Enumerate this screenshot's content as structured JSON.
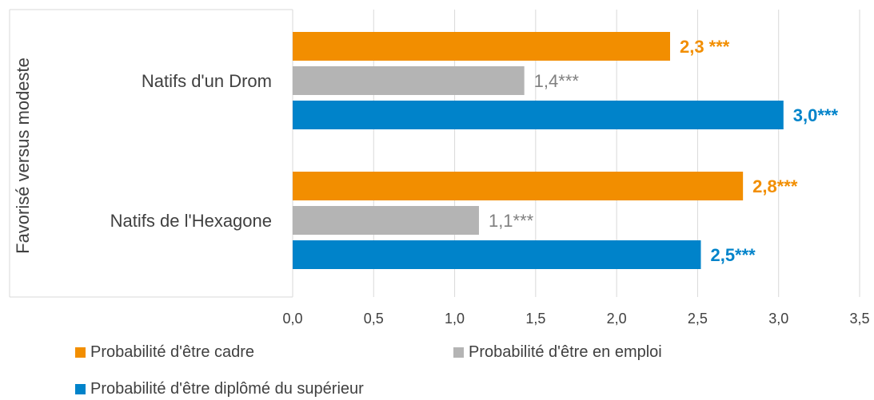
{
  "chart_data": {
    "type": "bar",
    "orientation": "horizontal",
    "group_axis_label": "Favorisé versus modeste",
    "categories": [
      "Natifs d'un Drom",
      "Natifs de l'Hexagone"
    ],
    "series": [
      {
        "name": "Probabilité d'être cadre",
        "color": "#f28e00",
        "values": [
          2.33,
          2.78
        ],
        "labels": [
          "2,3 ***",
          "2,8***"
        ],
        "label_bold": true
      },
      {
        "name": "Probabilité d'être en emploi",
        "color": "#b4b4b4",
        "values": [
          1.43,
          1.15
        ],
        "labels": [
          "1,4***",
          "1,1***"
        ],
        "label_bold": false
      },
      {
        "name": "Probabilité d'être diplômé du supérieur",
        "color": "#0083ca",
        "values": [
          3.03,
          2.52
        ],
        "labels": [
          "3,0***",
          "2,5***"
        ],
        "label_bold": true
      }
    ],
    "xlim": [
      0,
      3.5
    ],
    "xticks": [
      "0,0",
      "0,5",
      "1,0",
      "1,5",
      "2,0",
      "2,5",
      "3,0",
      "3,5"
    ],
    "xtick_values": [
      0,
      0.5,
      1.0,
      1.5,
      2.0,
      2.5,
      3.0,
      3.5
    ],
    "grid": true,
    "legend_position": "bottom"
  },
  "colors": {
    "grid": "#d9d9d9",
    "axis_text": "#404040",
    "gray_label": "#7f7f7f"
  }
}
